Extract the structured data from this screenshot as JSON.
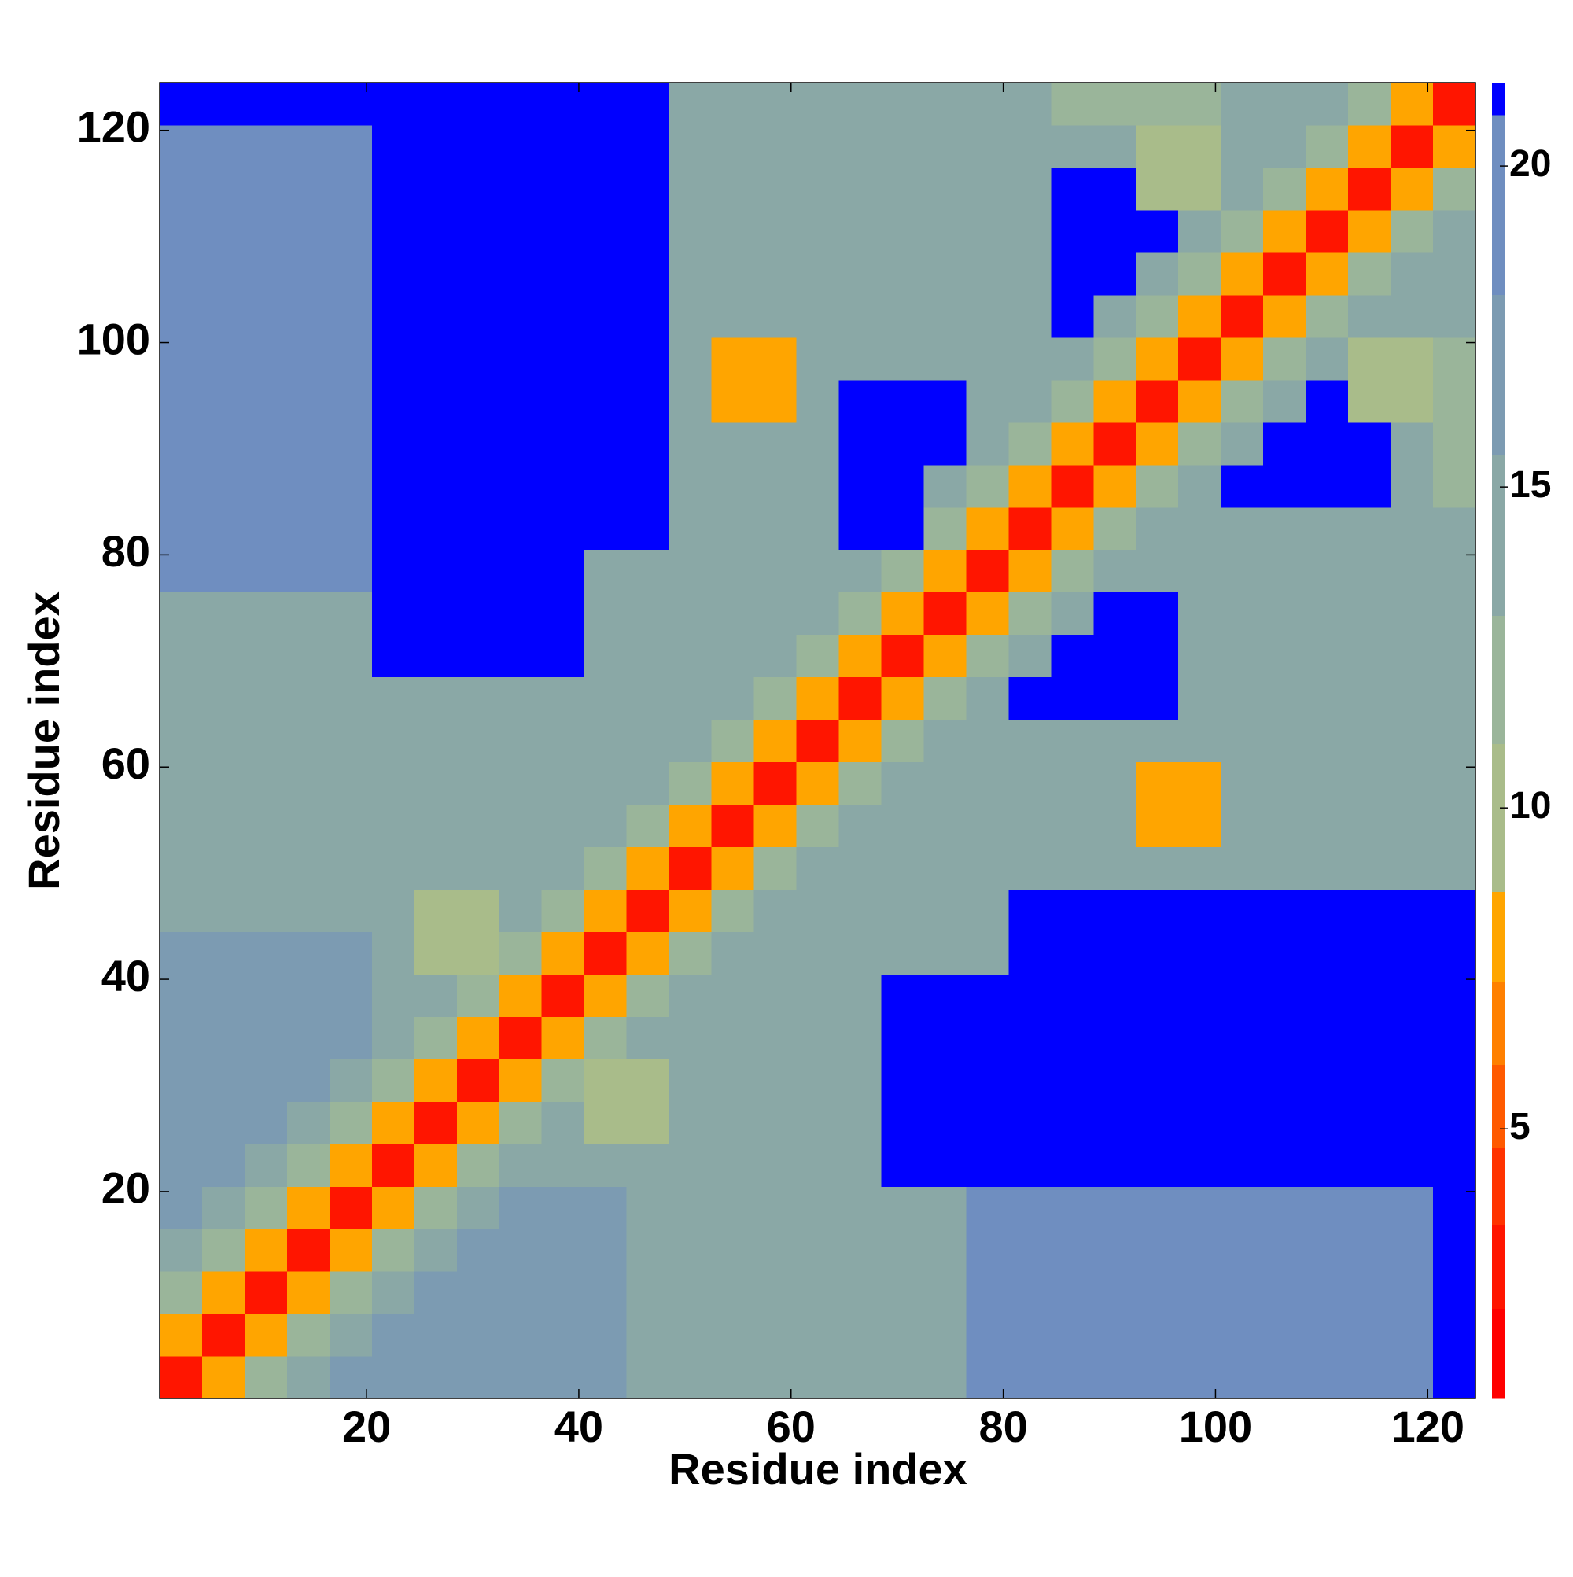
{
  "chart_data": {
    "type": "heatmap",
    "xlabel": "Residue index",
    "ylabel": "Residue index",
    "xlim": [
      0.5,
      124.5
    ],
    "ylim": [
      0.5,
      124.5
    ],
    "xticks": [
      20,
      40,
      60,
      80,
      100,
      120
    ],
    "yticks": [
      20,
      40,
      60,
      80,
      100,
      120
    ],
    "xbins": [
      0.5,
      4.5,
      8.5,
      12.5,
      16.5,
      20.5,
      24.5,
      28.5,
      32.5,
      36.5,
      40.5,
      44.5,
      48.5,
      52.5,
      56.5,
      60.5,
      64.5,
      68.5,
      72.5,
      76.5,
      80.5,
      84.5,
      88.5,
      92.5,
      96.5,
      100.5,
      104.5,
      108.5,
      112.5,
      116.5,
      120.5,
      124.5
    ],
    "ybins": [
      0.5,
      4.5,
      8.5,
      12.5,
      16.5,
      20.5,
      24.5,
      28.5,
      32.5,
      36.5,
      40.5,
      44.5,
      48.5,
      52.5,
      56.5,
      60.5,
      64.5,
      68.5,
      72.5,
      76.5,
      80.5,
      84.5,
      88.5,
      92.5,
      96.5,
      100.5,
      104.5,
      108.5,
      112.5,
      116.5,
      120.5,
      124.5
    ],
    "z": [
      [
        3,
        8,
        12,
        15,
        17,
        17,
        17,
        17,
        17,
        17,
        17,
        14,
        14,
        14,
        14,
        14,
        14,
        14,
        14,
        19,
        19,
        19,
        19,
        19,
        19,
        19,
        19,
        19,
        19,
        19,
        21
      ],
      [
        8,
        3,
        8,
        12,
        15,
        17,
        17,
        17,
        17,
        17,
        17,
        14,
        14,
        14,
        14,
        14,
        14,
        14,
        14,
        19,
        19,
        19,
        19,
        19,
        19,
        19,
        19,
        19,
        19,
        19,
        21
      ],
      [
        12,
        8,
        3,
        8,
        12,
        15,
        17,
        17,
        17,
        17,
        17,
        14,
        14,
        14,
        14,
        14,
        14,
        14,
        14,
        19,
        19,
        19,
        19,
        19,
        19,
        19,
        19,
        19,
        19,
        19,
        21
      ],
      [
        15,
        12,
        8,
        3,
        8,
        12,
        15,
        17,
        17,
        17,
        17,
        14,
        14,
        14,
        14,
        14,
        14,
        14,
        14,
        19,
        19,
        19,
        19,
        19,
        19,
        19,
        19,
        19,
        19,
        19,
        21
      ],
      [
        17,
        15,
        12,
        8,
        3,
        8,
        12,
        15,
        17,
        17,
        17,
        14,
        14,
        14,
        14,
        14,
        14,
        14,
        14,
        19,
        19,
        19,
        19,
        19,
        19,
        19,
        19,
        19,
        19,
        19,
        21
      ],
      [
        17,
        17,
        15,
        12,
        8,
        3,
        8,
        12,
        13,
        13,
        13,
        13,
        13,
        15,
        15,
        15,
        15,
        21,
        21,
        21,
        21,
        21,
        21,
        21,
        21,
        21,
        21,
        21,
        21,
        21,
        21
      ],
      [
        17,
        17,
        17,
        15,
        12,
        8,
        3,
        8,
        12,
        13,
        10,
        10,
        13,
        15,
        15,
        15,
        15,
        21,
        21,
        21,
        21,
        21,
        21,
        21,
        21,
        21,
        21,
        21,
        21,
        21,
        21
      ],
      [
        17,
        17,
        17,
        17,
        15,
        12,
        8,
        3,
        8,
        12,
        10,
        10,
        13,
        15,
        15,
        15,
        15,
        21,
        21,
        21,
        21,
        21,
        21,
        21,
        21,
        21,
        21,
        21,
        21,
        21,
        21
      ],
      [
        17,
        17,
        17,
        17,
        17,
        13,
        12,
        8,
        3,
        8,
        12,
        13,
        13,
        15,
        15,
        15,
        15,
        21,
        21,
        21,
        21,
        21,
        21,
        21,
        21,
        21,
        21,
        21,
        21,
        21,
        21
      ],
      [
        17,
        17,
        17,
        17,
        17,
        13,
        13,
        12,
        8,
        3,
        8,
        12,
        13,
        15,
        15,
        15,
        15,
        21,
        21,
        21,
        21,
        21,
        21,
        21,
        21,
        21,
        21,
        21,
        21,
        21,
        21
      ],
      [
        17,
        17,
        17,
        17,
        17,
        13,
        10,
        10,
        12,
        8,
        3,
        8,
        12,
        14,
        14,
        14,
        14,
        14,
        14,
        14,
        21,
        21,
        21,
        21,
        21,
        21,
        21,
        21,
        21,
        21,
        21
      ],
      [
        14,
        14,
        14,
        14,
        14,
        13,
        10,
        10,
        13,
        12,
        8,
        3,
        8,
        12,
        14,
        14,
        14,
        14,
        14,
        14,
        21,
        21,
        21,
        21,
        21,
        21,
        21,
        21,
        21,
        21,
        21
      ],
      [
        14,
        14,
        14,
        14,
        14,
        13,
        13,
        13,
        13,
        13,
        12,
        8,
        3,
        8,
        12,
        14,
        14,
        14,
        14,
        14,
        14,
        14,
        14,
        14,
        14,
        14,
        14,
        14,
        14,
        14,
        14
      ],
      [
        14,
        14,
        14,
        14,
        14,
        15,
        15,
        15,
        15,
        15,
        14,
        12,
        8,
        3,
        8,
        12,
        14,
        14,
        14,
        14,
        14,
        14,
        14,
        8,
        8,
        14,
        14,
        14,
        14,
        14,
        14
      ],
      [
        14,
        14,
        14,
        14,
        14,
        15,
        15,
        15,
        15,
        15,
        14,
        14,
        12,
        8,
        3,
        8,
        12,
        14,
        14,
        14,
        14,
        14,
        14,
        8,
        8,
        14,
        14,
        14,
        14,
        14,
        14
      ],
      [
        14,
        14,
        14,
        14,
        14,
        15,
        15,
        15,
        15,
        15,
        14,
        14,
        14,
        12,
        8,
        3,
        8,
        12,
        14,
        14,
        14,
        14,
        14,
        14,
        14,
        14,
        14,
        14,
        14,
        14,
        14
      ],
      [
        14,
        14,
        14,
        14,
        14,
        15,
        15,
        15,
        15,
        15,
        14,
        14,
        14,
        14,
        12,
        8,
        3,
        8,
        12,
        14,
        21,
        21,
        21,
        21,
        14,
        14,
        14,
        14,
        14,
        14,
        14
      ],
      [
        14,
        14,
        14,
        14,
        14,
        21,
        21,
        21,
        21,
        21,
        14,
        14,
        14,
        14,
        14,
        12,
        8,
        3,
        8,
        12,
        15,
        21,
        21,
        21,
        14,
        14,
        14,
        14,
        14,
        14,
        14
      ],
      [
        14,
        14,
        14,
        14,
        14,
        21,
        21,
        21,
        21,
        21,
        14,
        14,
        14,
        14,
        14,
        14,
        12,
        8,
        3,
        8,
        12,
        15,
        21,
        21,
        14,
        14,
        14,
        14,
        14,
        14,
        14
      ],
      [
        19,
        19,
        19,
        19,
        19,
        21,
        21,
        21,
        21,
        21,
        14,
        14,
        14,
        14,
        14,
        14,
        14,
        12,
        8,
        3,
        8,
        12,
        14,
        14,
        14,
        14,
        14,
        14,
        14,
        14,
        14
      ],
      [
        19,
        19,
        19,
        19,
        19,
        21,
        21,
        21,
        21,
        21,
        21,
        21,
        14,
        14,
        14,
        14,
        21,
        21,
        12,
        8,
        3,
        8,
        12,
        14,
        14,
        14,
        14,
        14,
        14,
        14,
        14
      ],
      [
        19,
        19,
        19,
        19,
        19,
        21,
        21,
        21,
        21,
        21,
        21,
        21,
        14,
        14,
        14,
        14,
        21,
        21,
        15,
        12,
        8,
        3,
        8,
        12,
        14,
        21,
        21,
        21,
        21,
        14,
        12
      ],
      [
        19,
        19,
        19,
        19,
        19,
        21,
        21,
        21,
        21,
        21,
        21,
        21,
        14,
        14,
        14,
        14,
        21,
        21,
        21,
        14,
        12,
        8,
        3,
        8,
        12,
        15,
        21,
        21,
        21,
        14,
        12
      ],
      [
        19,
        19,
        19,
        19,
        19,
        21,
        21,
        21,
        21,
        21,
        21,
        21,
        14,
        8,
        8,
        14,
        21,
        21,
        21,
        14,
        14,
        12,
        8,
        3,
        8,
        12,
        15,
        21,
        10,
        10,
        12
      ],
      [
        19,
        19,
        19,
        19,
        19,
        21,
        21,
        21,
        21,
        21,
        21,
        21,
        14,
        8,
        8,
        14,
        14,
        14,
        14,
        14,
        14,
        14,
        12,
        8,
        3,
        8,
        12,
        14,
        10,
        10,
        12
      ],
      [
        19,
        19,
        19,
        19,
        19,
        21,
        21,
        21,
        21,
        21,
        21,
        21,
        14,
        14,
        14,
        14,
        14,
        14,
        14,
        14,
        14,
        21,
        15,
        12,
        8,
        3,
        8,
        12,
        14,
        14,
        14
      ],
      [
        19,
        19,
        19,
        19,
        19,
        21,
        21,
        21,
        21,
        21,
        21,
        21,
        14,
        14,
        14,
        14,
        14,
        14,
        14,
        14,
        14,
        21,
        21,
        15,
        12,
        8,
        3,
        8,
        12,
        14,
        14
      ],
      [
        19,
        19,
        19,
        19,
        19,
        21,
        21,
        21,
        21,
        21,
        21,
        21,
        14,
        14,
        14,
        14,
        14,
        14,
        14,
        14,
        14,
        21,
        21,
        21,
        14,
        12,
        8,
        3,
        8,
        12,
        14
      ],
      [
        19,
        19,
        19,
        19,
        19,
        21,
        21,
        21,
        21,
        21,
        21,
        21,
        14,
        14,
        14,
        14,
        14,
        14,
        14,
        14,
        14,
        21,
        21,
        10,
        10,
        14,
        12,
        8,
        3,
        8,
        12
      ],
      [
        19,
        19,
        19,
        19,
        19,
        21,
        21,
        21,
        21,
        21,
        21,
        21,
        14,
        14,
        14,
        14,
        14,
        14,
        14,
        14,
        14,
        14,
        14,
        10,
        10,
        14,
        14,
        12,
        8,
        3,
        8
      ],
      [
        21,
        21,
        21,
        21,
        21,
        21,
        21,
        21,
        21,
        21,
        21,
        21,
        14,
        14,
        14,
        14,
        14,
        14,
        14,
        14,
        14,
        12,
        12,
        12,
        12,
        14,
        14,
        14,
        12,
        8,
        3
      ]
    ],
    "zlim": [
      0.8,
      21.3
    ],
    "zticks": [
      5,
      10,
      15,
      20
    ],
    "colorbar": {
      "levels": [
        2.2,
        3.5,
        4.7,
        6,
        7.3,
        8.7,
        11,
        13,
        15.5,
        18,
        20.8
      ],
      "colors": [
        "#ff0000",
        "#ff1500",
        "#ff3300",
        "#ff5a00",
        "#ff8000",
        "#ffa500",
        "#a9bc8a",
        "#9ab59a",
        "#8aa8a6",
        "#7c9bb2",
        "#6f8ec0",
        "#0000ff"
      ]
    }
  }
}
